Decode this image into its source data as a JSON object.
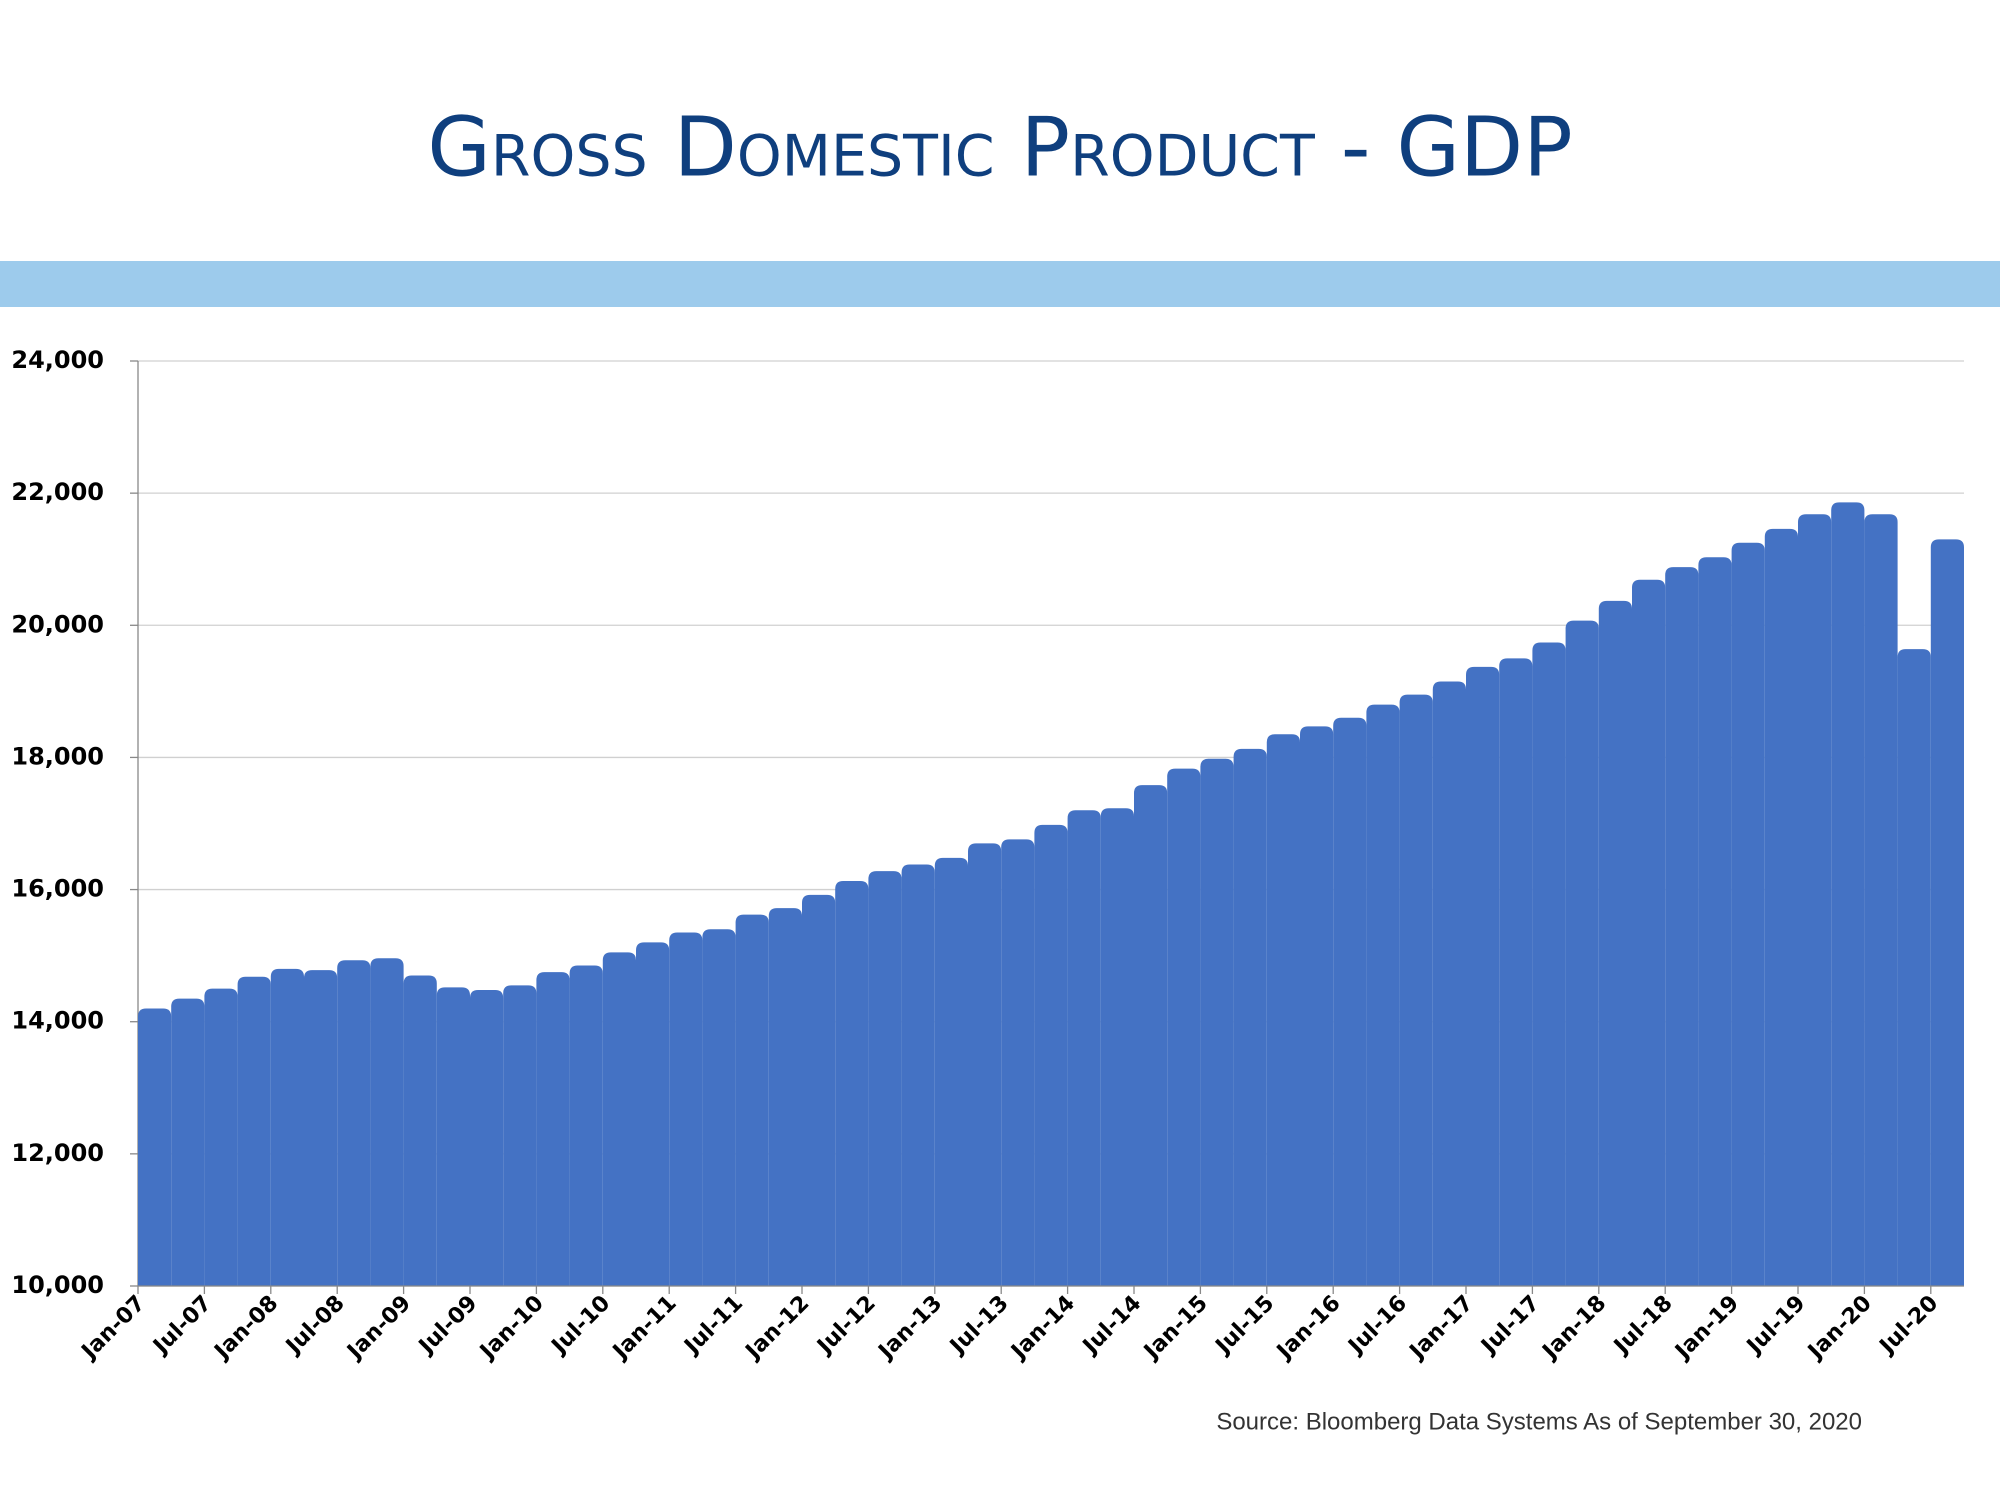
{
  "chart_data": {
    "type": "bar",
    "title": "Gross Domestic Product - GDP",
    "source": "Source:  Bloomberg Data Systems As of September 30, 2020",
    "color": "#4472c4",
    "categories": [
      "Jan-07",
      null,
      "Jul-07",
      null,
      "Jan-08",
      null,
      "Jul-08",
      null,
      "Jan-09",
      null,
      "Jul-09",
      null,
      "Jan-10",
      null,
      "Jul-10",
      null,
      "Jan-11",
      null,
      "Jul-11",
      null,
      "Jan-12",
      null,
      "Jul-12",
      null,
      "Jan-13",
      null,
      "Jul-13",
      null,
      "Jan-14",
      null,
      "Jul-14",
      null,
      "Jan-15",
      null,
      "Jul-15",
      null,
      "Jan-16",
      null,
      "Jul-16",
      null,
      "Jan-17",
      null,
      "Jul-17",
      null,
      "Jan-18",
      null,
      "Jul-18",
      null,
      "Jan-19",
      null,
      "Jul-19",
      null,
      "Jan-20",
      null,
      "Jul-20"
    ],
    "values": [
      14200,
      14350,
      14500,
      14680,
      14800,
      14780,
      14930,
      14960,
      14700,
      14520,
      14480,
      14550,
      14750,
      14850,
      15050,
      15200,
      15350,
      15400,
      15620,
      15720,
      15920,
      16130,
      16280,
      16380,
      16480,
      16700,
      16760,
      16980,
      17200,
      17230,
      17580,
      17830,
      17980,
      18130,
      18350,
      18470,
      18600,
      18800,
      18950,
      19150,
      19370,
      19500,
      19740,
      20070,
      20370,
      20690,
      20880,
      21030,
      21250,
      21460,
      21680,
      21860,
      21680,
      19640,
      21300
    ],
    "ylim": [
      10000,
      24000
    ],
    "yticks": [
      {
        "value": 10000,
        "label": "10,000"
      },
      {
        "value": 12000,
        "label": "12,000"
      },
      {
        "value": 14000,
        "label": "14,000"
      },
      {
        "value": 16000,
        "label": "16,000"
      },
      {
        "value": 18000,
        "label": "18,000"
      },
      {
        "value": 20000,
        "label": "20,000"
      },
      {
        "value": 22000,
        "label": "22,000"
      },
      {
        "value": 24000,
        "label": "24,000"
      }
    ],
    "grid": true
  }
}
